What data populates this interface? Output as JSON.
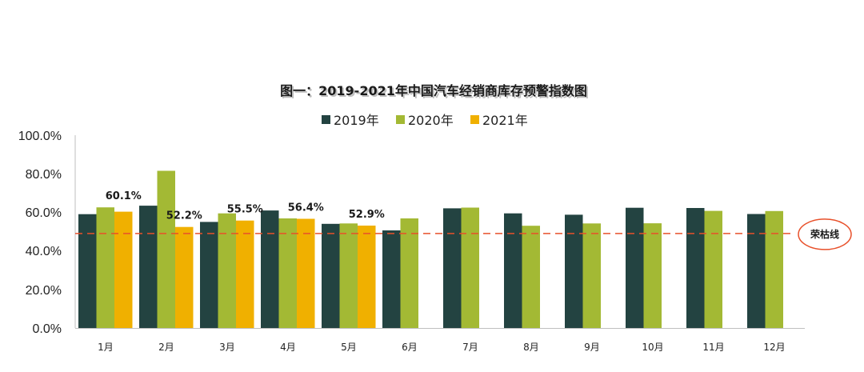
{
  "chart_data": {
    "type": "bar",
    "title": "图一：2019-2021年中国汽车经销商库存预警指数图",
    "categories": [
      "1月",
      "2月",
      "3月",
      "4月",
      "5月",
      "6月",
      "7月",
      "8月",
      "9月",
      "10月",
      "11月",
      "12月"
    ],
    "series": [
      {
        "name": "2019年",
        "color": "#234341",
        "values": [
          58.8,
          63.2,
          54.8,
          60.7,
          53.8,
          50.4,
          61.8,
          59.2,
          58.5,
          62.1,
          62.0,
          58.9
        ]
      },
      {
        "name": "2020年",
        "color": "#a3b934",
        "values": [
          62.3,
          81.2,
          59.2,
          56.6,
          54.0,
          56.6,
          62.2,
          52.8,
          54.0,
          54.1,
          60.5,
          60.4
        ]
      },
      {
        "name": "2021年",
        "color": "#f0b000",
        "values": [
          60.1,
          52.2,
          55.5,
          56.4,
          52.9,
          null,
          null,
          null,
          null,
          null,
          null,
          null
        ]
      }
    ],
    "data_labels": [
      "60.1%",
      "52.2%",
      "55.5%",
      "56.4%",
      "52.9%"
    ],
    "yticks": [
      "0.0%",
      "20.0%",
      "40.0%",
      "60.0%",
      "80.0%",
      "100.0%"
    ],
    "ylim": [
      0,
      100
    ],
    "xlabel": "",
    "ylabel": "",
    "reference_line": {
      "value": 48.8,
      "label": "荣枯线",
      "color": "#e8502a"
    },
    "legend_position": "top",
    "grid": false
  }
}
